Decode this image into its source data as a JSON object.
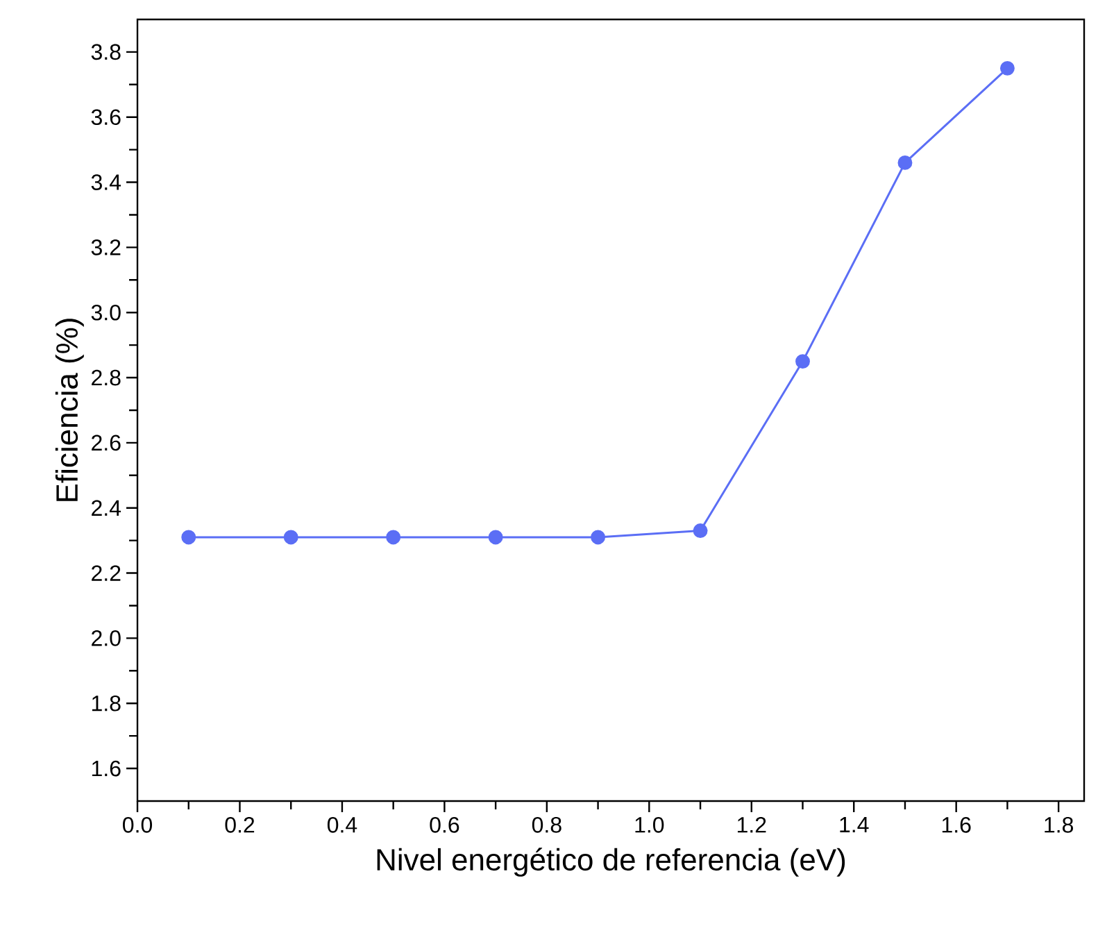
{
  "chart_data": {
    "type": "line",
    "xlabel": "Nivel energético de referencia (eV)",
    "ylabel": "Eficiencia (%)",
    "x": [
      0.1,
      0.3,
      0.5,
      0.7,
      0.9,
      1.1,
      1.3,
      1.5,
      1.7
    ],
    "series": [
      {
        "color": "#5b6ef5",
        "values": [
          2.31,
          2.31,
          2.31,
          2.31,
          2.31,
          2.33,
          2.85,
          3.46,
          3.75
        ]
      }
    ],
    "marker": "circle",
    "line_style": "solid",
    "xlim": [
      0,
      1.85
    ],
    "ylim": [
      1.5,
      3.9
    ],
    "xticks": [
      {
        "value": 0,
        "label": "0.0"
      },
      {
        "value": 0.1,
        "label": null
      },
      0.2,
      {
        "value": 0.3,
        "label": null
      },
      0.4,
      {
        "value": 0.5,
        "label": null
      },
      0.6,
      {
        "value": 0.7,
        "label": null
      },
      0.8,
      {
        "value": 0.9,
        "label": null
      },
      {
        "value": 1.0,
        "label": "1.0"
      },
      {
        "value": 1.1,
        "label": null
      },
      1.2,
      {
        "value": 1.3,
        "label": null
      },
      1.4,
      {
        "value": 1.5,
        "label": null
      },
      1.6,
      {
        "value": 1.7,
        "label": null
      },
      1.8
    ],
    "yticks": [
      1.6,
      {
        "value": 1.7,
        "label": null
      },
      1.8,
      {
        "value": 1.9,
        "label": null
      },
      {
        "value": 2.0,
        "label": "2.0"
      },
      {
        "value": 2.1,
        "label": null
      },
      2.2,
      {
        "value": 2.3,
        "label": null
      },
      2.4,
      {
        "value": 2.5,
        "label": null
      },
      2.6,
      {
        "value": 2.7,
        "label": null
      },
      2.8,
      {
        "value": 2.9,
        "label": null
      },
      {
        "value": 3.0,
        "label": "3.0"
      },
      {
        "value": 3.1,
        "label": null
      },
      3.2,
      {
        "value": 3.3,
        "label": null
      },
      3.4,
      {
        "value": 3.5,
        "label": null
      },
      3.6,
      {
        "value": 3.7,
        "label": null
      },
      3.8
    ]
  }
}
